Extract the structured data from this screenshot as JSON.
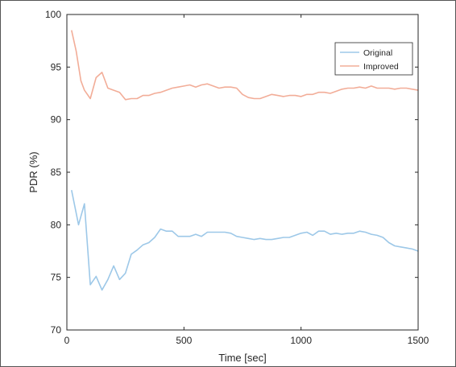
{
  "chart_data": {
    "type": "line",
    "xlabel": "Time [sec]",
    "ylabel": "PDR (%)",
    "xlim": [
      0,
      1500
    ],
    "ylim": [
      70,
      100
    ],
    "xticks": [
      "0",
      "500",
      "1000",
      "1500"
    ],
    "yticks": [
      "70",
      "75",
      "80",
      "85",
      "90",
      "95",
      "100"
    ],
    "grid": false,
    "legend_position": "top-right",
    "series": [
      {
        "name": "Original",
        "color": "#9dc8e8",
        "x": [
          20,
          50,
          75,
          100,
          125,
          150,
          175,
          200,
          225,
          250,
          275,
          300,
          325,
          350,
          375,
          400,
          425,
          450,
          475,
          500,
          525,
          550,
          575,
          600,
          625,
          650,
          675,
          700,
          725,
          750,
          775,
          800,
          825,
          850,
          875,
          900,
          925,
          950,
          975,
          1000,
          1025,
          1050,
          1075,
          1100,
          1125,
          1150,
          1175,
          1200,
          1225,
          1250,
          1275,
          1300,
          1325,
          1350,
          1375,
          1400,
          1425,
          1450,
          1475,
          1500
        ],
        "values": [
          83.3,
          80.0,
          82.0,
          74.3,
          75.1,
          73.8,
          74.8,
          76.1,
          74.8,
          75.4,
          77.2,
          77.6,
          78.1,
          78.3,
          78.8,
          79.6,
          79.4,
          79.4,
          78.9,
          78.9,
          78.9,
          79.1,
          78.9,
          79.3,
          79.3,
          79.3,
          79.3,
          79.2,
          78.9,
          78.8,
          78.7,
          78.6,
          78.7,
          78.6,
          78.6,
          78.7,
          78.8,
          78.8,
          79.0,
          79.2,
          79.3,
          79.0,
          79.4,
          79.4,
          79.1,
          79.2,
          79.1,
          79.2,
          79.2,
          79.4,
          79.3,
          79.1,
          79.0,
          78.8,
          78.3,
          78.0,
          77.9,
          77.8,
          77.7,
          77.5
        ]
      },
      {
        "name": "Improved",
        "color": "#f2ad98",
        "x": [
          20,
          40,
          60,
          75,
          100,
          125,
          150,
          175,
          200,
          225,
          250,
          275,
          300,
          325,
          350,
          375,
          400,
          425,
          450,
          475,
          500,
          525,
          550,
          575,
          600,
          625,
          650,
          675,
          700,
          725,
          750,
          775,
          800,
          825,
          850,
          875,
          900,
          925,
          950,
          975,
          1000,
          1025,
          1050,
          1075,
          1100,
          1125,
          1150,
          1175,
          1200,
          1225,
          1250,
          1275,
          1300,
          1325,
          1350,
          1375,
          1400,
          1425,
          1450,
          1475,
          1500
        ],
        "values": [
          98.5,
          96.5,
          93.7,
          92.8,
          92.0,
          94.0,
          94.5,
          93.0,
          92.8,
          92.6,
          91.9,
          92.0,
          92.0,
          92.3,
          92.3,
          92.5,
          92.6,
          92.8,
          93.0,
          93.1,
          93.2,
          93.3,
          93.1,
          93.3,
          93.4,
          93.2,
          93.0,
          93.1,
          93.1,
          93.0,
          92.4,
          92.1,
          92.0,
          92.0,
          92.2,
          92.4,
          92.3,
          92.2,
          92.3,
          92.3,
          92.2,
          92.4,
          92.4,
          92.6,
          92.6,
          92.5,
          92.7,
          92.9,
          93.0,
          93.0,
          93.1,
          93.0,
          93.2,
          93.0,
          93.0,
          93.0,
          92.9,
          93.0,
          93.0,
          92.9,
          92.8
        ]
      }
    ]
  }
}
